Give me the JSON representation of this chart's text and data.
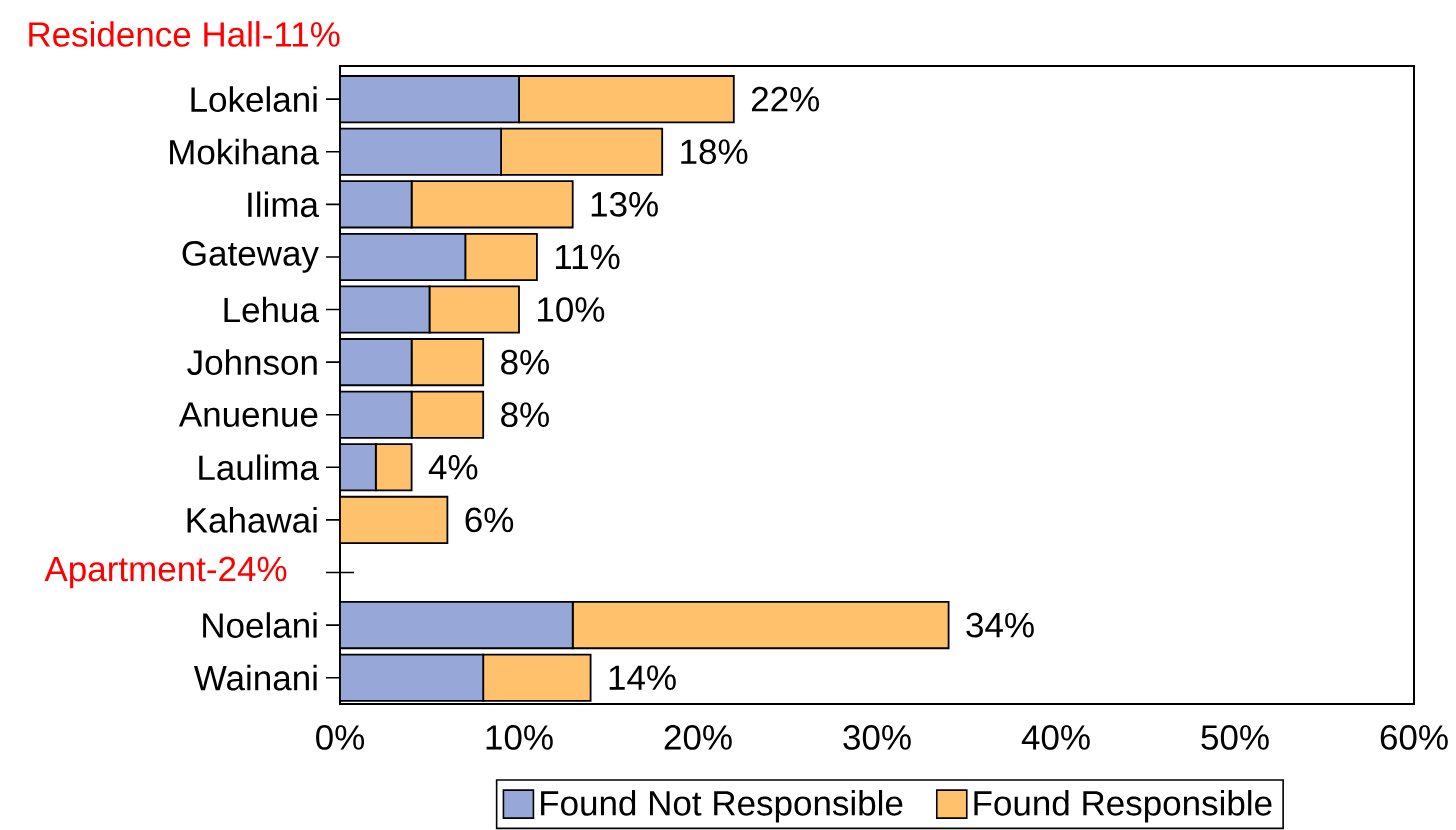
{
  "chart_data": {
    "type": "bar",
    "orientation": "horizontal",
    "stacked": true,
    "categories": [
      "Lokelani",
      "Mokihana",
      "Ilima",
      "Gateway",
      "Lehua",
      "Johnson",
      "Anuenue",
      "Laulima",
      "Kahawai",
      null,
      "Noelani",
      "Wainani"
    ],
    "series": [
      {
        "name": "Found Not Responsible",
        "color": "#97a7d7",
        "values": [
          10,
          9,
          4,
          7,
          5,
          4,
          4,
          2,
          0,
          null,
          13,
          8
        ]
      },
      {
        "name": "Found Responsible",
        "color": "#ffc16b",
        "values": [
          12,
          9,
          9,
          4,
          5,
          4,
          4,
          2,
          6,
          null,
          21,
          6
        ]
      }
    ],
    "totals": [
      "22%",
      "18%",
      "13%",
      "11%",
      "10%",
      "8%",
      "8%",
      "4%",
      "6%",
      null,
      "34%",
      "14%"
    ],
    "xlim": [
      0,
      60
    ],
    "xticks": [
      {
        "value": 0,
        "label": "0%"
      },
      {
        "value": 10,
        "label": "10%"
      },
      {
        "value": 20,
        "label": "20%"
      },
      {
        "value": 30,
        "label": "30%"
      },
      {
        "value": 40,
        "label": "40%"
      },
      {
        "value": 50,
        "label": "50%"
      },
      {
        "value": 60,
        "label": "60%"
      }
    ],
    "annotations": [
      "Residence Hall-11%",
      "Apartment-24%"
    ],
    "legend": "bottom"
  }
}
